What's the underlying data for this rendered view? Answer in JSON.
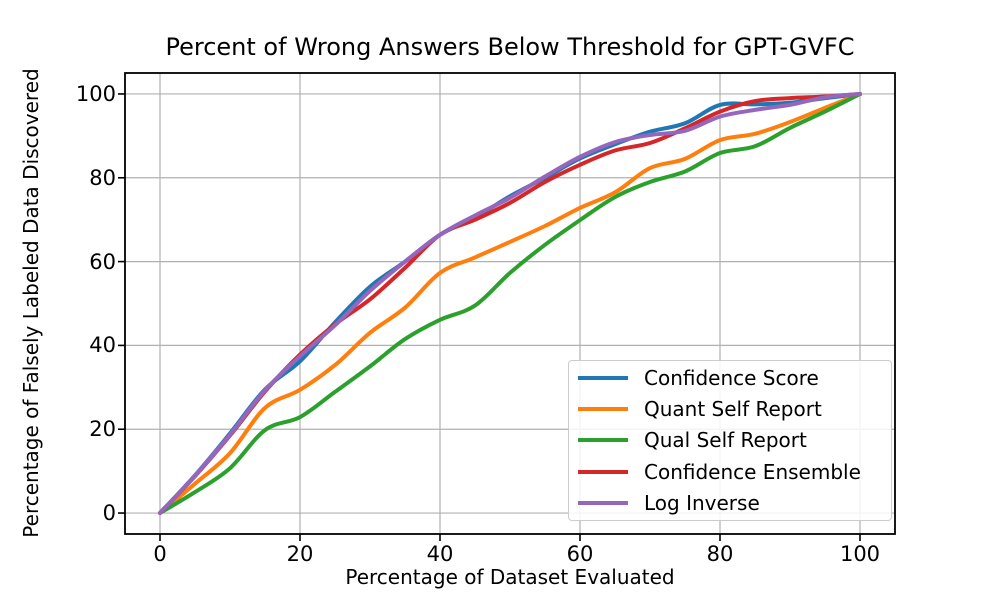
{
  "chart_data": {
    "type": "line",
    "title": "Percent of Wrong Answers Below Threshold for GPT-GVFC",
    "xlabel": "Percentage of Dataset Evaluated",
    "ylabel": "Percentage of Falsely Labeled Data Discovered",
    "xlim": [
      -5,
      105
    ],
    "ylim": [
      -5,
      105
    ],
    "xticks": [
      0,
      20,
      40,
      60,
      80,
      100
    ],
    "yticks": [
      0,
      20,
      40,
      60,
      80,
      100
    ],
    "grid": true,
    "grid_color": "#b0b0b0",
    "legend_position": "lower right",
    "x": [
      0,
      5,
      10,
      15,
      20,
      25,
      30,
      35,
      40,
      45,
      50,
      55,
      60,
      65,
      70,
      75,
      80,
      85,
      90,
      95,
      100
    ],
    "series": [
      {
        "name": "Confidence Score",
        "color": "#1f77b4",
        "values": [
          0,
          9.0,
          19.0,
          29.5,
          36.2,
          45.5,
          54.0,
          60.0,
          66.4,
          70.5,
          75.6,
          80.0,
          84.6,
          88.0,
          91.0,
          93.0,
          97.4,
          97.5,
          97.9,
          99.0,
          100
        ]
      },
      {
        "name": "Quant Self Report",
        "color": "#ff7f0e",
        "values": [
          0,
          7.0,
          14.3,
          25.1,
          29.4,
          35.3,
          43.0,
          49.0,
          57.3,
          61.0,
          64.7,
          68.5,
          72.8,
          76.5,
          82.3,
          84.5,
          89.0,
          90.5,
          93.3,
          96.7,
          100
        ]
      },
      {
        "name": "Qual Self Report",
        "color": "#2ca02c",
        "values": [
          0,
          5.0,
          10.7,
          19.8,
          22.9,
          28.9,
          35.0,
          41.5,
          46.1,
          49.5,
          57.3,
          64.0,
          69.9,
          75.4,
          79.0,
          81.5,
          85.9,
          87.5,
          91.9,
          95.8,
          100
        ]
      },
      {
        "name": "Confidence Ensemble",
        "color": "#d62728",
        "values": [
          0,
          8.8,
          18.5,
          29.0,
          37.8,
          45.0,
          51.0,
          58.5,
          66.4,
          70.0,
          74.0,
          79.0,
          83.1,
          86.5,
          88.3,
          91.8,
          95.8,
          98.3,
          99.0,
          99.4,
          100
        ]
      },
      {
        "name": "Log Inverse",
        "color": "#9467bd",
        "values": [
          0,
          8.9,
          18.7,
          29.3,
          37.4,
          44.8,
          53.0,
          60.0,
          66.4,
          71.0,
          75.2,
          80.3,
          85.0,
          88.5,
          90.2,
          91.2,
          94.6,
          96.2,
          97.4,
          99.2,
          100
        ]
      }
    ]
  }
}
